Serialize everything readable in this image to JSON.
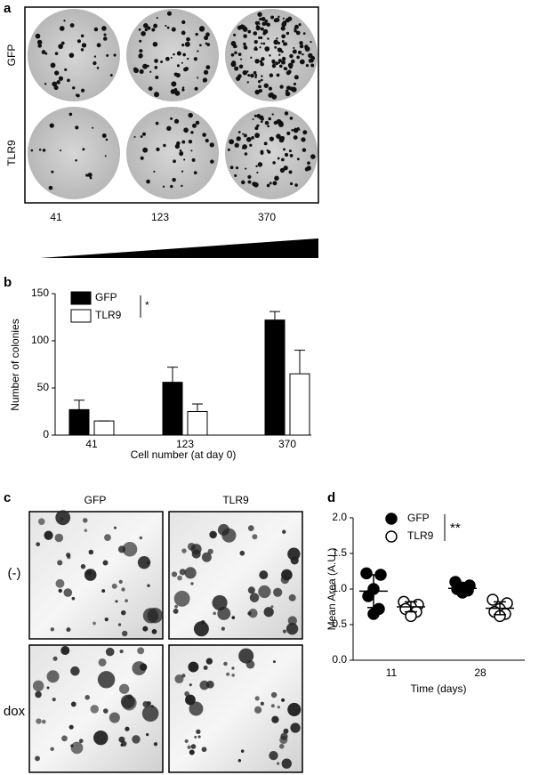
{
  "panel_a": {
    "label": "a",
    "rows": [
      "GFP",
      "TLR9"
    ],
    "columns": [
      "41",
      "123",
      "370"
    ]
  },
  "chart_data": [
    {
      "type": "bar",
      "label": "b",
      "ylabel": "Number of colonies",
      "xlabel": "Cell number (at day 0)",
      "annotation": "*",
      "categories": [
        "41",
        "123",
        "370"
      ],
      "ylim": [
        0,
        150
      ],
      "yticks": [
        0,
        50,
        100,
        150
      ],
      "series": [
        {
          "name": "GFP",
          "color": "#000000",
          "values": [
            27,
            56,
            122
          ],
          "errors": [
            10,
            16,
            9
          ]
        },
        {
          "name": "TLR9",
          "color": "#ffffff",
          "values": [
            15,
            25,
            65
          ],
          "errors": [
            0,
            8,
            25
          ]
        }
      ]
    },
    {
      "type": "strip",
      "label": "d",
      "ylabel": "Mean Area (A.U.)",
      "xlabel": "Time (days)",
      "annotation": "**",
      "categories": [
        "11",
        "28"
      ],
      "ylim": [
        0,
        2
      ],
      "yticks": [
        {
          "value": 0,
          "label": "0.0"
        },
        {
          "value": 0.5,
          "label": "0.5"
        },
        {
          "value": 1,
          "label": "1.0"
        },
        {
          "value": 1.5,
          "label": "1.5"
        },
        {
          "value": 2,
          "label": "2.0"
        }
      ],
      "series": [
        {
          "name": "GFP",
          "color": "#000000",
          "filled": true,
          "values": [
            [
              1.22,
              1.2,
              1.0,
              0.9,
              0.72,
              0.65
            ],
            [
              1.1,
              1.05,
              1.02,
              1.0,
              0.98,
              0.95
            ]
          ],
          "means": [
            0.97,
            1.01
          ],
          "errors": [
            0.23,
            0.05
          ]
        },
        {
          "name": "TLR9",
          "color": "#000000",
          "filled": false,
          "values": [
            [
              0.82,
              0.78,
              0.75,
              0.72,
              0.68,
              0.62
            ],
            [
              0.85,
              0.8,
              0.72,
              0.68,
              0.65,
              0.62
            ]
          ],
          "means": [
            0.75,
            0.73
          ],
          "errors": [
            0.07,
            0.09
          ]
        }
      ]
    }
  ],
  "panel_c": {
    "label": "c",
    "columns": [
      "GFP",
      "TLR9"
    ],
    "rows": [
      "(-)",
      "dox"
    ]
  }
}
